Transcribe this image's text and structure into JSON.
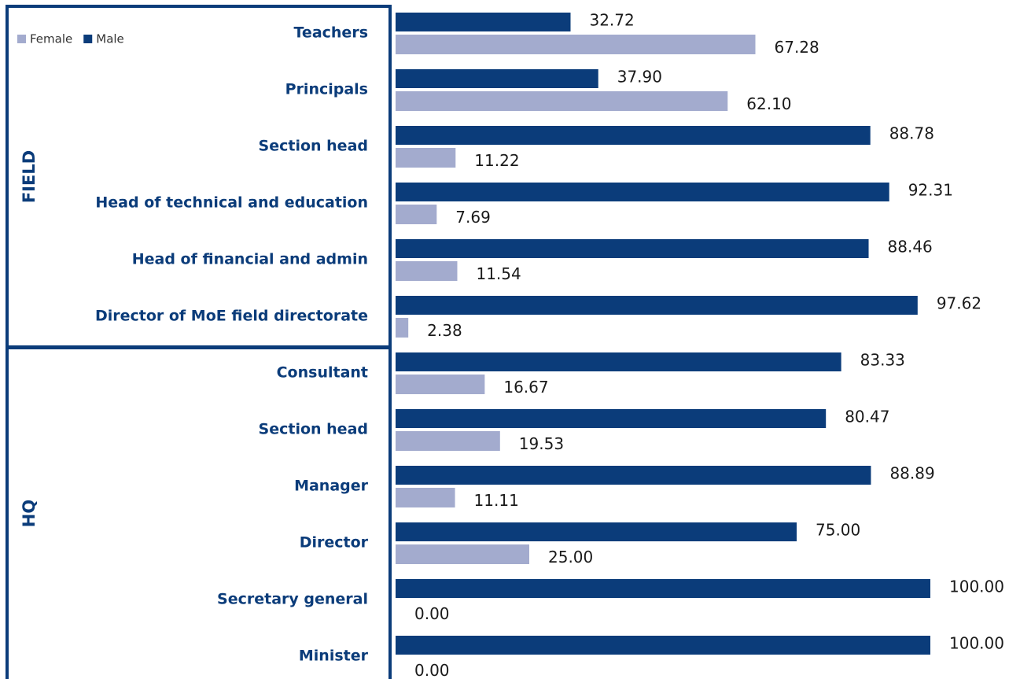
{
  "chart_data": {
    "type": "hbar",
    "categories": [
      "Teachers",
      "Principals",
      "Section head",
      "Head of technical and education",
      "Head of financial and admin",
      "Director of MoE field directorate",
      "Consultant",
      "Section head",
      "Manager",
      "Director",
      "Secretary general",
      "Minister"
    ],
    "groups": [
      {
        "label": "FIELD",
        "size": 6
      },
      {
        "label": "HQ",
        "size": 6
      }
    ],
    "series": [
      {
        "name": "Male",
        "color": "#0b3c7a",
        "values": [
          32.72,
          37.9,
          88.78,
          92.31,
          88.46,
          97.62,
          83.33,
          80.47,
          88.89,
          75,
          100,
          100
        ],
        "value_labels": [
          "32.72",
          "37.90",
          "88.78",
          "92.31",
          "88.46",
          "97.62",
          "83.33",
          "80.47",
          "88.89",
          "75.00",
          "100.00",
          "100.00"
        ]
      },
      {
        "name": "Female",
        "color": "#a3abce",
        "values": [
          67.28,
          62.1,
          11.22,
          7.69,
          11.54,
          2.38,
          16.67,
          19.53,
          11.11,
          25,
          0,
          0
        ],
        "value_labels": [
          "67.28",
          "62.10",
          "11.22",
          "7.69",
          "11.54",
          "2.38",
          "16.67",
          "19.53",
          "11.11",
          "25.00",
          "0.00",
          "0.00"
        ]
      }
    ],
    "legend_order": [
      1,
      0
    ],
    "xlim": [
      0,
      100
    ]
  }
}
